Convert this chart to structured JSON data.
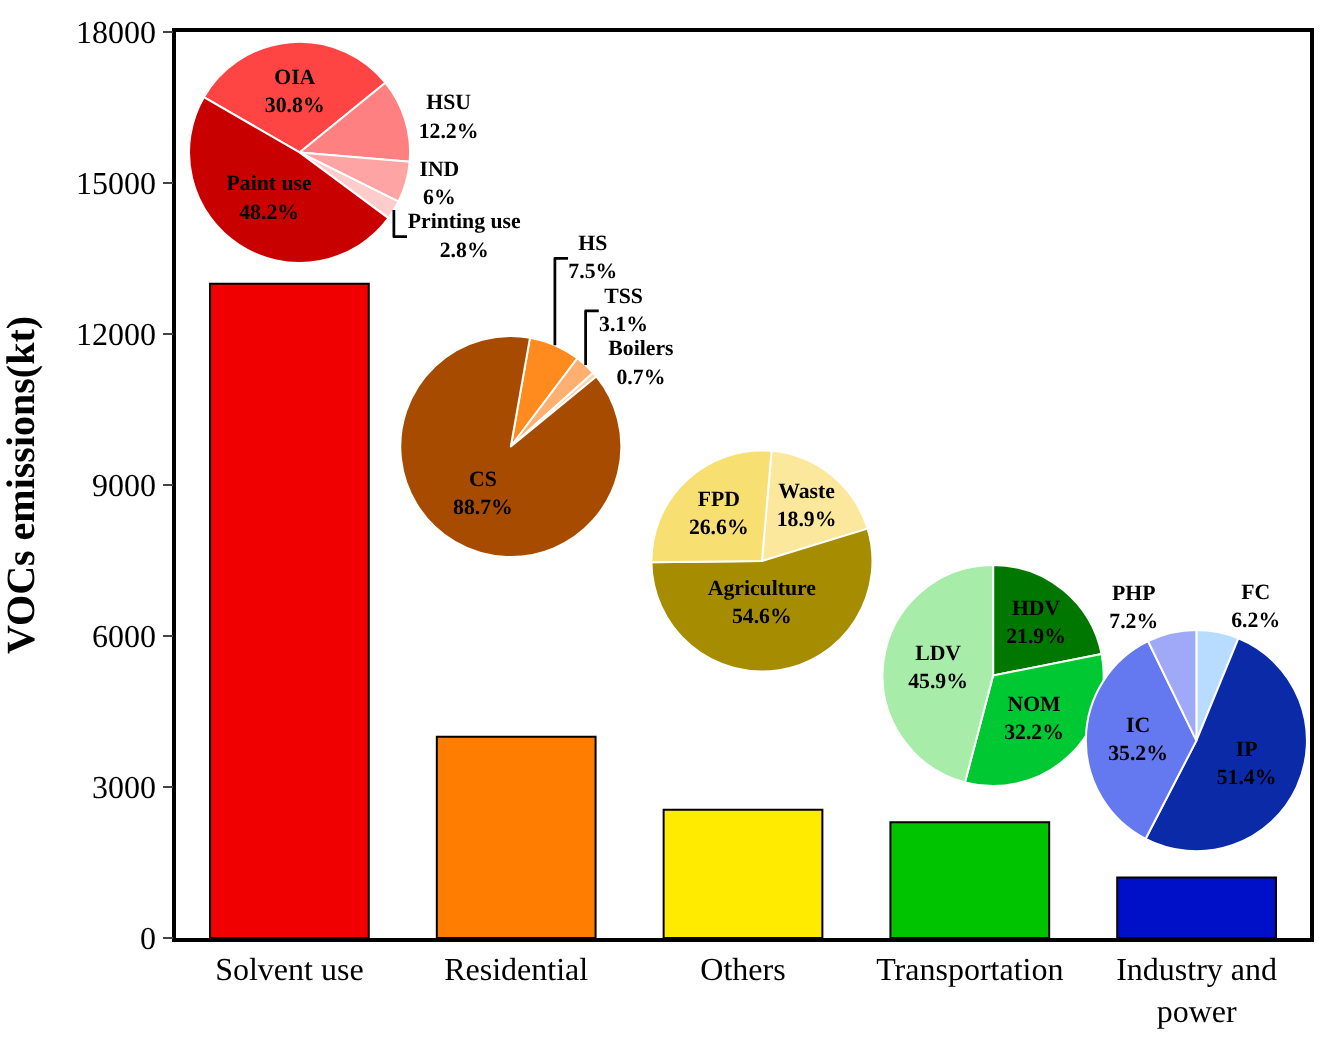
{
  "chart_data": [
    {
      "type": "bar",
      "ylabel": "VOCs emissions(kt)",
      "categories": [
        "Solvent use",
        "Residential",
        "Others",
        "Transportation",
        "Industry and power"
      ],
      "values": [
        13000,
        4000,
        2550,
        2300,
        1200
      ],
      "colors": [
        "#f00000",
        "#ff7d00",
        "#ffeb00",
        "#00c400",
        "#0010c8"
      ],
      "ylim": [
        0,
        18000
      ],
      "yticks": [
        0,
        3000,
        6000,
        9000,
        12000,
        15000,
        18000
      ]
    },
    {
      "type": "pie",
      "categories": [
        "OIA",
        "HSU",
        "IND",
        "Printing use",
        "Paint use"
      ],
      "values": [
        30.8,
        12.2,
        6,
        2.8,
        48.2
      ],
      "value_labels": [
        "30.8%",
        "12.2%",
        "6%",
        "2.8%",
        "48.2%"
      ],
      "colors": [
        "#ff4444",
        "#ff8080",
        "#ffa4a4",
        "#ffcccc",
        "#c80000"
      ]
    },
    {
      "type": "pie",
      "categories": [
        "HS",
        "TSS",
        "Boilers",
        "CS"
      ],
      "values": [
        7.5,
        3.1,
        0.7,
        88.7
      ],
      "value_labels": [
        "7.5%",
        "3.1%",
        "0.7%",
        "88.7%"
      ],
      "colors": [
        "#ff8a1e",
        "#ffb070",
        "#ffd4a8",
        "#a64b00"
      ]
    },
    {
      "type": "pie",
      "categories": [
        "Waste",
        "Agriculture",
        "FPD"
      ],
      "values": [
        18.9,
        54.6,
        26.6
      ],
      "value_labels": [
        "18.9%",
        "54.6%",
        "26.6%"
      ],
      "colors": [
        "#fce89c",
        "#a68c00",
        "#f8df72"
      ]
    },
    {
      "type": "pie",
      "categories": [
        "HDV",
        "NOM",
        "LDV"
      ],
      "values": [
        21.9,
        32.2,
        45.9
      ],
      "value_labels": [
        "21.9%",
        "32.2%",
        "45.9%"
      ],
      "colors": [
        "#007800",
        "#00c832",
        "#a8ecaa"
      ]
    },
    {
      "type": "pie",
      "categories": [
        "FC",
        "IP",
        "IC",
        "PHP"
      ],
      "values": [
        6.2,
        51.4,
        35.2,
        7.2
      ],
      "value_labels": [
        "6.2%",
        "51.4%",
        "35.2%",
        "7.2%"
      ],
      "colors": [
        "#b8dcff",
        "#0a2aa8",
        "#6478f0",
        "#a0a8f8"
      ]
    }
  ]
}
